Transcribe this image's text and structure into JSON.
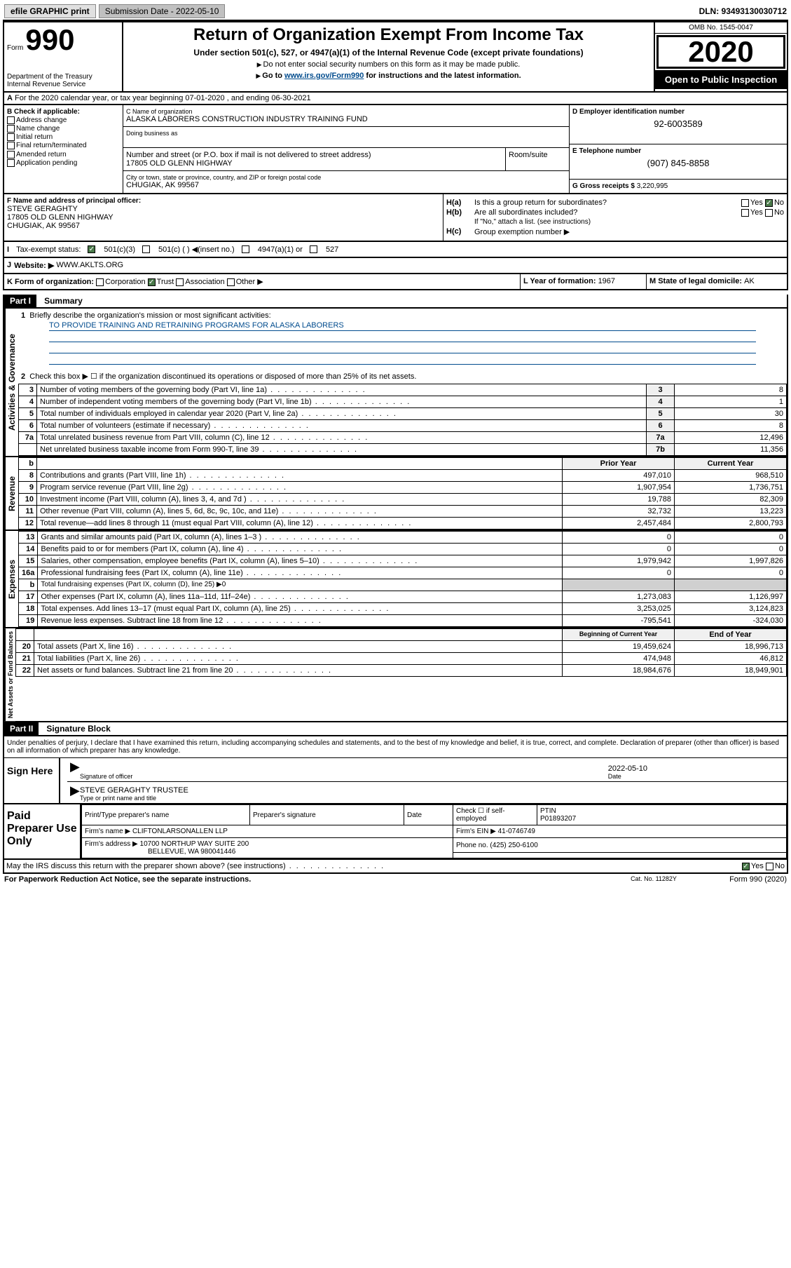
{
  "topbar": {
    "efile": "efile GRAPHIC print",
    "submission": "Submission Date - 2022-05-10",
    "dln": "DLN: 93493130030712"
  },
  "header": {
    "form_prefix": "Form",
    "form_number": "990",
    "dept": "Department of the Treasury\nInternal Revenue Service",
    "title": "Return of Organization Exempt From Income Tax",
    "sub": "Under section 501(c), 527, or 4947(a)(1) of the Internal Revenue Code (except private foundations)",
    "note1": "Do not enter social security numbers on this form as it may be made public.",
    "note2_a": "Go to ",
    "note2_link": "www.irs.gov/Form990",
    "note2_b": " for instructions and the latest information.",
    "omb": "OMB No. 1545-0047",
    "year": "2020",
    "open": "Open to Public Inspection"
  },
  "row_a": "For the 2020 calendar year, or tax year beginning 07-01-2020    , and ending 06-30-2021",
  "col_b": {
    "label": "B Check if applicable:",
    "items": [
      "Address change",
      "Name change",
      "Initial return",
      "Final return/terminated",
      "Amended return",
      "Application pending"
    ]
  },
  "col_c": {
    "name_label": "C Name of organization",
    "name": "ALASKA LABORERS CONSTRUCTION INDUSTRY TRAINING FUND",
    "dba_label": "Doing business as",
    "dba": "",
    "street_label": "Number and street (or P.O. box if mail is not delivered to street address)",
    "street": "17805 OLD GLENN HIGHWAY",
    "room_label": "Room/suite",
    "city_label": "City or town, state or province, country, and ZIP or foreign postal code",
    "city": "CHUGIAK, AK  99567"
  },
  "col_de": {
    "d_label": "D Employer identification number",
    "d_val": "92-6003589",
    "e_label": "E Telephone number",
    "e_val": "(907) 845-8858",
    "g_label": "G Gross receipts $ ",
    "g_val": "3,220,995"
  },
  "col_f": {
    "label": "F  Name and address of principal officer:",
    "name": "STEVE GERAGHTY",
    "addr1": "17805 OLD GLENN HIGHWAY",
    "addr2": "CHUGIAK, AK  99567"
  },
  "col_h": {
    "ha_label": "H(a)",
    "ha_text": "Is this a group return for subordinates?",
    "ha_yes": "Yes",
    "ha_no": "No",
    "hb_label": "H(b)",
    "hb_text": "Are all subordinates included?",
    "hb_note": "If \"No,\" attach a list. (see instructions)",
    "hc_label": "H(c)",
    "hc_text": "Group exemption number ▶"
  },
  "tax_exempt": {
    "i_label": "I",
    "label": "Tax-exempt status:",
    "opt1": "501(c)(3)",
    "opt2": "501(c) (  ) ◀(insert no.)",
    "opt3": "4947(a)(1) or",
    "opt4": "527"
  },
  "website": {
    "j": "J",
    "label": "Website: ▶",
    "val": "WWW.AKLTS.ORG"
  },
  "korg": {
    "k_label": "K Form of organization:",
    "corp": "Corporation",
    "trust": "Trust",
    "assoc": "Association",
    "other": "Other ▶",
    "l_label": "L Year of formation: ",
    "l_val": "1967",
    "m_label": "M State of legal domicile: ",
    "m_val": "AK"
  },
  "part1": {
    "header": "Part I",
    "title": "Summary",
    "line1_label": "1",
    "line1_text": "Briefly describe the organization's mission or most significant activities:",
    "mission": "TO PROVIDE TRAINING AND RETRAINING PROGRAMS FOR ALASKA LABORERS",
    "line2_label": "2",
    "line2_text": "Check this box ▶ ☐  if the organization discontinued its operations or disposed of more than 25% of its net assets.",
    "vert_ag": "Activities & Governance",
    "vert_rev": "Revenue",
    "vert_exp": "Expenses",
    "vert_nab": "Net Assets or Fund Balances",
    "rows": [
      {
        "n": "3",
        "desc": "Number of voting members of the governing body (Part VI, line 1a)",
        "c": "3",
        "v": "8"
      },
      {
        "n": "4",
        "desc": "Number of independent voting members of the governing body (Part VI, line 1b)",
        "c": "4",
        "v": "1"
      },
      {
        "n": "5",
        "desc": "Total number of individuals employed in calendar year 2020 (Part V, line 2a)",
        "c": "5",
        "v": "30"
      },
      {
        "n": "6",
        "desc": "Total number of volunteers (estimate if necessary)",
        "c": "6",
        "v": "8"
      },
      {
        "n": "7a",
        "desc": "Total unrelated business revenue from Part VIII, column (C), line 12",
        "c": "7a",
        "v": "12,496"
      },
      {
        "n": "",
        "desc": "Net unrelated business taxable income from Form 990-T, line 39",
        "c": "7b",
        "v": "11,356"
      }
    ],
    "col_hdr_b": "b",
    "col_hdr_prior": "Prior Year",
    "col_hdr_current": "Current Year",
    "rev_rows": [
      {
        "n": "8",
        "desc": "Contributions and grants (Part VIII, line 1h)",
        "p": "497,010",
        "c": "968,510"
      },
      {
        "n": "9",
        "desc": "Program service revenue (Part VIII, line 2g)",
        "p": "1,907,954",
        "c": "1,736,751"
      },
      {
        "n": "10",
        "desc": "Investment income (Part VIII, column (A), lines 3, 4, and 7d )",
        "p": "19,788",
        "c": "82,309"
      },
      {
        "n": "11",
        "desc": "Other revenue (Part VIII, column (A), lines 5, 6d, 8c, 9c, 10c, and 11e)",
        "p": "32,732",
        "c": "13,223"
      },
      {
        "n": "12",
        "desc": "Total revenue—add lines 8 through 11 (must equal Part VIII, column (A), line 12)",
        "p": "2,457,484",
        "c": "2,800,793"
      }
    ],
    "exp_rows": [
      {
        "n": "13",
        "desc": "Grants and similar amounts paid (Part IX, column (A), lines 1–3 )",
        "p": "0",
        "c": "0"
      },
      {
        "n": "14",
        "desc": "Benefits paid to or for members (Part IX, column (A), line 4)",
        "p": "0",
        "c": "0"
      },
      {
        "n": "15",
        "desc": "Salaries, other compensation, employee benefits (Part IX, column (A), lines 5–10)",
        "p": "1,979,942",
        "c": "1,997,826"
      },
      {
        "n": "16a",
        "desc": "Professional fundraising fees (Part IX, column (A), line 11e)",
        "p": "0",
        "c": "0"
      }
    ],
    "line16b_n": "b",
    "line16b": "Total fundraising expenses (Part IX, column (D), line 25) ▶0",
    "exp_rows2": [
      {
        "n": "17",
        "desc": "Other expenses (Part IX, column (A), lines 11a–11d, 11f–24e)",
        "p": "1,273,083",
        "c": "1,126,997"
      },
      {
        "n": "18",
        "desc": "Total expenses. Add lines 13–17 (must equal Part IX, column (A), line 25)",
        "p": "3,253,025",
        "c": "3,124,823"
      },
      {
        "n": "19",
        "desc": "Revenue less expenses. Subtract line 18 from line 12",
        "p": "-795,541",
        "c": "-324,030"
      }
    ],
    "col_hdr_beg": "Beginning of Current Year",
    "col_hdr_end": "End of Year",
    "nab_rows": [
      {
        "n": "20",
        "desc": "Total assets (Part X, line 16)",
        "p": "19,459,624",
        "c": "18,996,713"
      },
      {
        "n": "21",
        "desc": "Total liabilities (Part X, line 26)",
        "p": "474,948",
        "c": "46,812"
      },
      {
        "n": "22",
        "desc": "Net assets or fund balances. Subtract line 21 from line 20",
        "p": "18,984,676",
        "c": "18,949,901"
      }
    ]
  },
  "part2": {
    "header": "Part II",
    "title": "Signature Block",
    "declaration": "Under penalties of perjury, I declare that I have examined this return, including accompanying schedules and statements, and to the best of my knowledge and belief, it is true, correct, and complete. Declaration of preparer (other than officer) is based on all information of which preparer has any knowledge.",
    "sign_here": "Sign Here",
    "sig_officer_label": "Signature of officer",
    "date_label": "Date",
    "date_val": "2022-05-10",
    "name_title_label": "Type or print name and title",
    "name_title_val": "STEVE GERAGHTY TRUSTEE",
    "paid_preparer": "Paid Preparer Use Only",
    "prep_name_label": "Print/Type preparer's name",
    "prep_sig_label": "Preparer's signature",
    "prep_date_label": "Date",
    "prep_check_label": "Check ☐ if self-employed",
    "ptin_label": "PTIN",
    "ptin_val": "P01893207",
    "firm_name_label": "Firm's name    ▶",
    "firm_name_val": "CLIFTONLARSONALLEN LLP",
    "firm_ein_label": "Firm's EIN ▶",
    "firm_ein_val": "41-0746749",
    "firm_addr_label": "Firm's address ▶",
    "firm_addr_val1": "10700 NORTHUP WAY SUITE 200",
    "firm_addr_val2": "BELLEVUE, WA  980041446",
    "phone_label": "Phone no. ",
    "phone_val": "(425) 250-6100",
    "discuss": "May the IRS discuss this return with the preparer shown above? (see instructions)",
    "yes": "Yes",
    "no": "No"
  },
  "footer": {
    "left": "For Paperwork Reduction Act Notice, see the separate instructions.",
    "mid": "Cat. No. 11282Y",
    "right": "Form 990 (2020)"
  }
}
